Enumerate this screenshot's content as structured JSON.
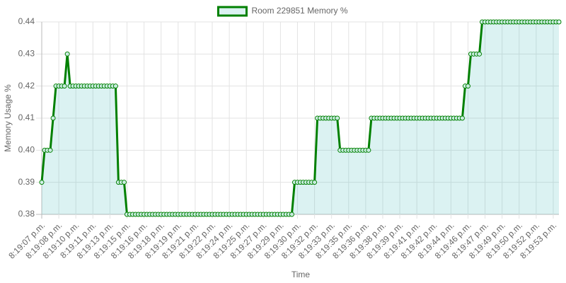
{
  "chart_data": {
    "type": "line",
    "x_label": "Time",
    "y_label": "Memory Usage %",
    "categories": [
      "8:19:07 p.m.",
      null,
      null,
      null,
      null,
      null,
      "8:19:08 p.m.",
      null,
      null,
      null,
      null,
      null,
      "8:19:10 p.m.",
      null,
      null,
      null,
      null,
      null,
      "8:19:11 p.m.",
      null,
      null,
      null,
      null,
      null,
      "8:19:13 p.m.",
      null,
      null,
      null,
      null,
      null,
      "8:19:15 p.m.",
      null,
      null,
      null,
      null,
      null,
      "8:19:16 p.m.",
      null,
      null,
      null,
      null,
      null,
      "8:19:18 p.m.",
      null,
      null,
      null,
      null,
      null,
      "8:19:19 p.m.",
      null,
      null,
      null,
      null,
      null,
      "8:19:21 p.m.",
      null,
      null,
      null,
      null,
      null,
      "8:19:22 p.m.",
      null,
      null,
      null,
      null,
      null,
      "8:19:24 p.m.",
      null,
      null,
      null,
      null,
      null,
      "8:19:25 p.m.",
      null,
      null,
      null,
      null,
      null,
      "8:19:27 p.m.",
      null,
      null,
      null,
      null,
      null,
      "8:19:29 p.m.",
      null,
      null,
      null,
      null,
      null,
      "8:19:30 p.m.",
      null,
      null,
      null,
      null,
      null,
      "8:19:32 p.m.",
      null,
      null,
      null,
      null,
      null,
      "8:19:33 p.m.",
      null,
      null,
      null,
      null,
      null,
      "8:19:35 p.m.",
      null,
      null,
      null,
      null,
      null,
      "8:19:36 p.m.",
      null,
      null,
      null,
      null,
      null,
      "8:19:38 p.m.",
      null,
      null,
      null,
      null,
      null,
      "8:19:39 p.m.",
      null,
      null,
      null,
      null,
      null,
      "8:19:41 p.m.",
      null,
      null,
      null,
      null,
      null,
      "8:19:42 p.m.",
      null,
      null,
      null,
      null,
      null,
      "8:19:44 p.m.",
      null,
      null,
      null,
      null,
      null,
      "8:19:46 p.m.",
      null,
      null,
      null,
      null,
      null,
      "8:19:47 p.m.",
      null,
      null,
      null,
      null,
      null,
      "8:19:49 p.m.",
      null,
      null,
      null,
      null,
      null,
      "8:19:50 p.m.",
      null,
      null,
      null,
      null,
      null,
      "8:19:52 p.m.",
      null,
      null,
      null,
      null,
      null,
      "8:19:53 p.m.",
      null,
      null
    ],
    "series": [
      {
        "name": "Room 229851 Memory %",
        "color": "#008000",
        "fill": "rgba(75,192,192,0.2)",
        "values": [
          0.39,
          0.4,
          0.4,
          0.4,
          0.41,
          0.42,
          0.42,
          0.42,
          0.42,
          0.43,
          0.42,
          0.42,
          0.42,
          0.42,
          0.42,
          0.42,
          0.42,
          0.42,
          0.42,
          0.42,
          0.42,
          0.42,
          0.42,
          0.42,
          0.42,
          0.42,
          0.42,
          0.39,
          0.39,
          0.39,
          0.38,
          0.38,
          0.38,
          0.38,
          0.38,
          0.38,
          0.38,
          0.38,
          0.38,
          0.38,
          0.38,
          0.38,
          0.38,
          0.38,
          0.38,
          0.38,
          0.38,
          0.38,
          0.38,
          0.38,
          0.38,
          0.38,
          0.38,
          0.38,
          0.38,
          0.38,
          0.38,
          0.38,
          0.38,
          0.38,
          0.38,
          0.38,
          0.38,
          0.38,
          0.38,
          0.38,
          0.38,
          0.38,
          0.38,
          0.38,
          0.38,
          0.38,
          0.38,
          0.38,
          0.38,
          0.38,
          0.38,
          0.38,
          0.38,
          0.38,
          0.38,
          0.38,
          0.38,
          0.38,
          0.38,
          0.38,
          0.38,
          0.38,
          0.38,
          0.39,
          0.39,
          0.39,
          0.39,
          0.39,
          0.39,
          0.39,
          0.39,
          0.41,
          0.41,
          0.41,
          0.41,
          0.41,
          0.41,
          0.41,
          0.41,
          0.4,
          0.4,
          0.4,
          0.4,
          0.4,
          0.4,
          0.4,
          0.4,
          0.4,
          0.4,
          0.4,
          0.41,
          0.41,
          0.41,
          0.41,
          0.41,
          0.41,
          0.41,
          0.41,
          0.41,
          0.41,
          0.41,
          0.41,
          0.41,
          0.41,
          0.41,
          0.41,
          0.41,
          0.41,
          0.41,
          0.41,
          0.41,
          0.41,
          0.41,
          0.41,
          0.41,
          0.41,
          0.41,
          0.41,
          0.41,
          0.41,
          0.41,
          0.41,
          0.41,
          0.42,
          0.42,
          0.43,
          0.43,
          0.43,
          0.43,
          0.44,
          0.44,
          0.44,
          0.44,
          0.44,
          0.44,
          0.44,
          0.44,
          0.44,
          0.44,
          0.44,
          0.44,
          0.44,
          0.44,
          0.44,
          0.44,
          0.44,
          0.44,
          0.44,
          0.44,
          0.44,
          0.44,
          0.44,
          0.44,
          0.44,
          0.44,
          0.44,
          0.44
        ]
      }
    ],
    "ylim": [
      0.38,
      0.44
    ],
    "yticks": [
      0.38,
      0.39,
      {
        "value": 0.4,
        "label": "0.40"
      },
      0.41,
      0.42,
      0.43,
      0.44
    ],
    "grid": true,
    "legend": "top"
  }
}
